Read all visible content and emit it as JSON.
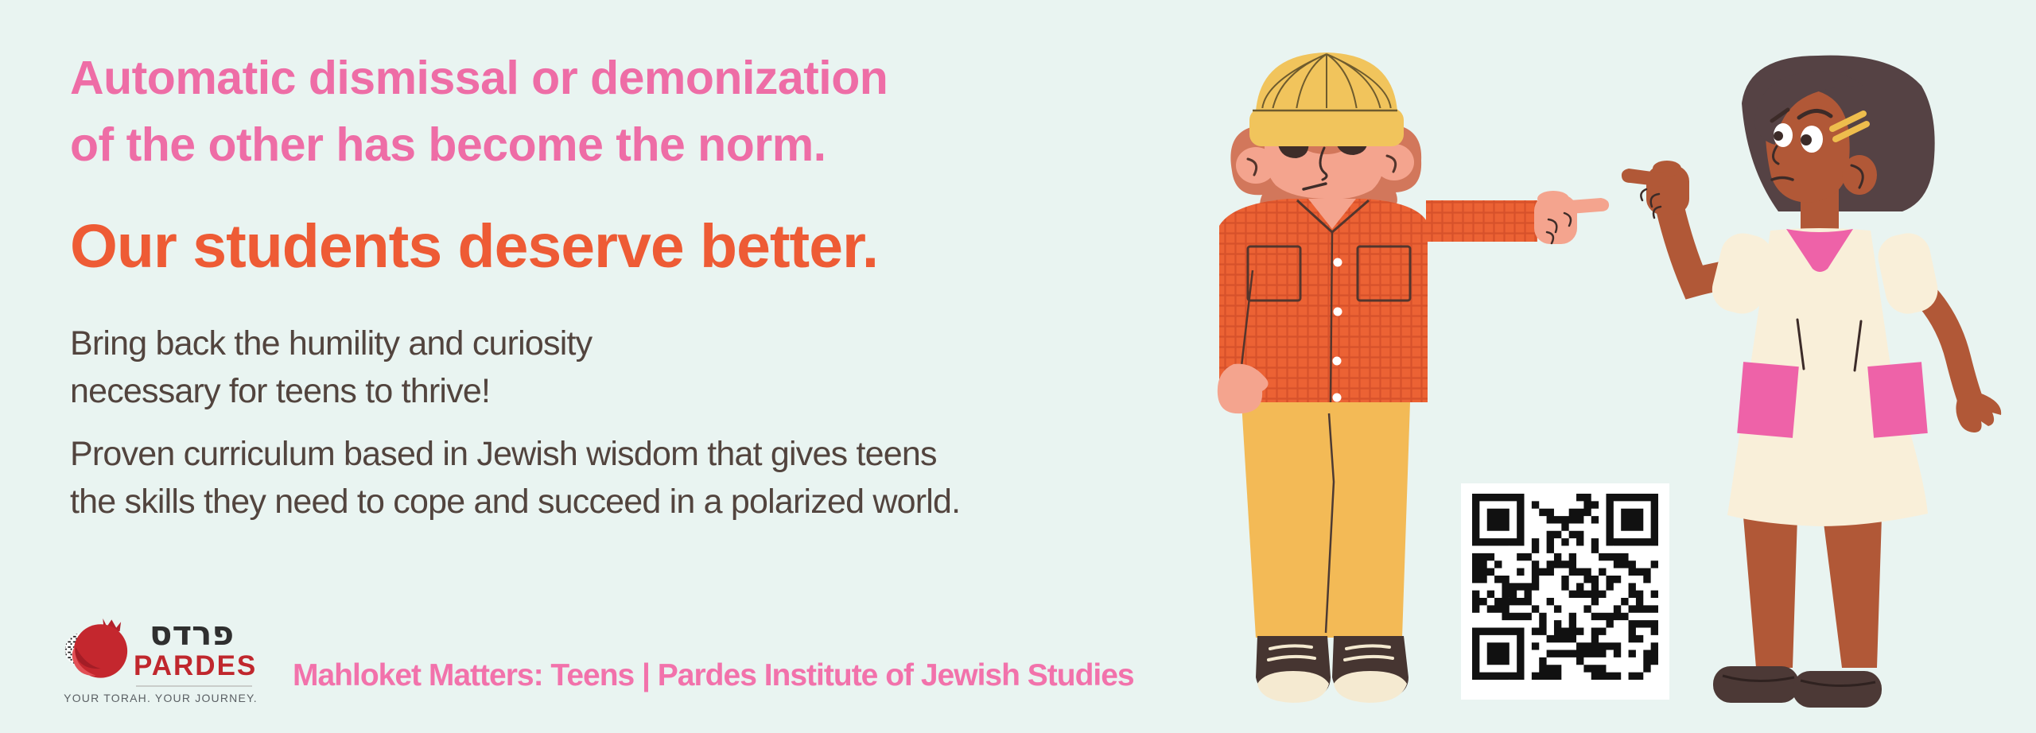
{
  "banner": {
    "background_color": "#e9f4f1"
  },
  "headline": {
    "color": "#ee6da6",
    "lines": [
      "Automatic dismissal or demonization",
      "of the other has become the norm."
    ]
  },
  "subheadline": {
    "color": "#ee5b35",
    "text": "Our students deserve better."
  },
  "body": {
    "color": "#52443e",
    "paragraph1": {
      "lines": [
        "Bring back the humility and curiosity",
        "necessary for teens to thrive!"
      ]
    },
    "paragraph2": {
      "lines": [
        "Proven curriculum based in Jewish wisdom that gives teens",
        "the skills they need to cope and succeed in a polarized world."
      ]
    }
  },
  "logo": {
    "hebrew_name": "פרדס",
    "latin_name": "PARDES",
    "tagline": "YOUR TORAH. YOUR JOURNEY.",
    "latin_color": "#c0272d",
    "hebrew_color": "#2f2f2f",
    "tagline_color": "#5b6064"
  },
  "program_line": {
    "color": "#f272ab",
    "text": "Mahloket Matters: Teens | Pardes Institute of Jewish Studies"
  },
  "illustration": {
    "left_character": "teen in yellow beanie and orange plaid shirt pointing right",
    "right_character": "teen girl in cream dress with pink collar pointing left",
    "qr_code_label": "QR code"
  }
}
